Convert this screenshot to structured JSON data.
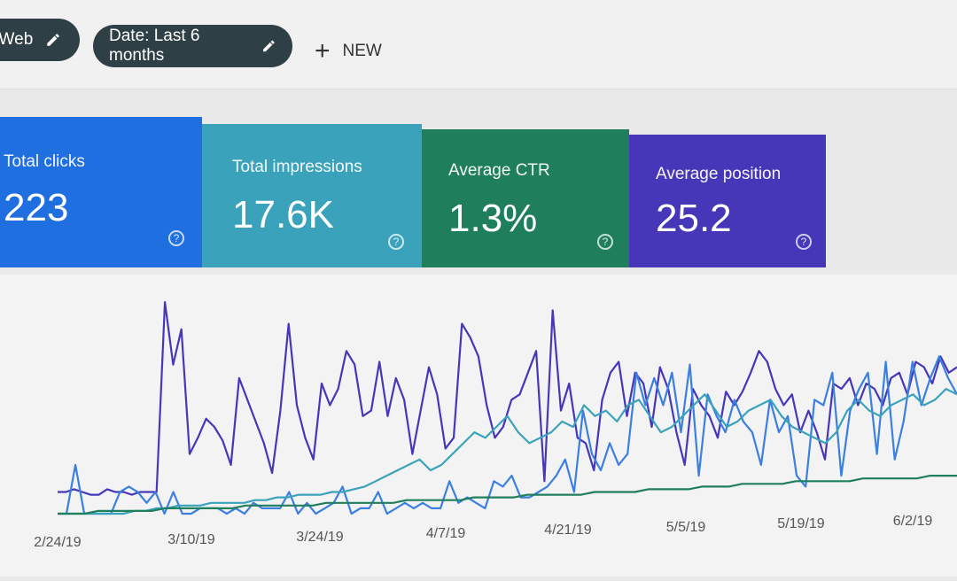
{
  "filters": {
    "type_chip": {
      "label": ": Web",
      "icon": "pencil-icon"
    },
    "date_chip": {
      "label": "Date: Last 6 months",
      "icon": "pencil-icon"
    },
    "new_button": {
      "label": "NEW",
      "icon": "plus-icon"
    }
  },
  "metrics": [
    {
      "label": "Total clicks",
      "value": "223",
      "color": "#1f6fe0"
    },
    {
      "label": "Total impressions",
      "value": "17.6K",
      "color": "#3aa3bb"
    },
    {
      "label": "Average CTR",
      "value": "1.3%",
      "color": "#1f7e5c"
    },
    {
      "label": "Average position",
      "value": "25.2",
      "color": "#4537b8"
    }
  ],
  "chart_data": {
    "type": "line",
    "x_tick_labels": [
      "2/24/19",
      "3/10/19",
      "3/24/19",
      "4/7/19",
      "4/21/19",
      "5/5/19",
      "5/19/19",
      "6/2/19"
    ],
    "grid": false,
    "legend": "none",
    "series": [
      {
        "color": "#4537b8",
        "values": [
          8,
          8,
          9,
          8,
          7,
          7,
          9,
          8,
          8,
          7,
          8,
          8,
          8,
          78,
          55,
          68,
          22,
          28,
          35,
          32,
          27,
          18,
          50,
          42,
          34,
          26,
          15,
          38,
          70,
          40,
          28,
          20,
          48,
          40,
          46,
          60,
          55,
          36,
          38,
          56,
          36,
          50,
          42,
          22,
          38,
          54,
          44,
          24,
          28,
          70,
          65,
          58,
          40,
          28,
          32,
          42,
          44,
          52,
          60,
          12,
          75,
          38,
          48,
          28,
          26,
          16,
          42,
          52,
          56,
          36,
          52,
          48,
          32,
          54,
          46,
          30,
          18,
          46,
          40,
          36,
          28,
          45,
          40,
          45,
          52,
          60,
          56,
          46,
          40,
          44,
          30,
          38,
          30,
          20,
          48,
          46,
          50,
          40,
          48,
          46,
          40,
          50,
          52,
          44,
          56,
          54,
          48,
          58,
          52,
          54
        ]
      },
      {
        "color": "#3b7fe0",
        "values": [
          0,
          0,
          18,
          0,
          0,
          0,
          0,
          8,
          10,
          8,
          4,
          8,
          0,
          8,
          0,
          0,
          2,
          2,
          2,
          0,
          2,
          0,
          4,
          2,
          2,
          2,
          8,
          0,
          4,
          0,
          2,
          4,
          10,
          0,
          2,
          2,
          8,
          0,
          2,
          4,
          2,
          4,
          2,
          2,
          12,
          4,
          6,
          4,
          2,
          12,
          10,
          14,
          6,
          6,
          8,
          10,
          14,
          20,
          8,
          38,
          22,
          16,
          26,
          18,
          22,
          52,
          40,
          50,
          40,
          52,
          30,
          55,
          14,
          44,
          36,
          30,
          42,
          34,
          30,
          18,
          42,
          30,
          36,
          14,
          10,
          42,
          40,
          52,
          14,
          38,
          46,
          52,
          22,
          56,
          20,
          34,
          56,
          40,
          50,
          58,
          50,
          44
        ]
      },
      {
        "color": "#3aa3bb",
        "values": [
          0,
          0,
          0,
          0,
          0,
          0,
          0,
          1,
          1,
          2,
          2,
          3,
          3,
          3,
          4,
          4,
          4,
          4,
          5,
          5,
          6,
          6,
          7,
          7,
          7,
          8,
          8,
          9,
          10,
          12,
          14,
          16,
          18,
          20,
          16,
          18,
          22,
          26,
          30,
          28,
          32,
          36,
          30,
          26,
          28,
          30,
          34,
          32,
          40,
          36,
          38,
          34,
          40,
          42,
          36,
          30,
          32,
          36,
          40,
          44,
          38,
          32,
          34,
          38,
          40,
          42,
          36,
          32,
          30,
          28,
          26,
          30,
          38,
          42,
          38,
          36,
          40,
          42,
          44,
          40,
          42,
          46,
          44
        ]
      },
      {
        "color": "#1f7e5c",
        "values": [
          0,
          0,
          0,
          1,
          1,
          1,
          1,
          1,
          2,
          2,
          2,
          2,
          2,
          2,
          3,
          3,
          3,
          3,
          3,
          3,
          4,
          4,
          4,
          4,
          4,
          4,
          5,
          5,
          5,
          5,
          5,
          6,
          6,
          6,
          6,
          7,
          7,
          7,
          7,
          7,
          8,
          8,
          8,
          8,
          9,
          9,
          9,
          9,
          10,
          10,
          10,
          11,
          11,
          11,
          11,
          12,
          12,
          12,
          12,
          12,
          13,
          13,
          13,
          13,
          13,
          14,
          14,
          14
        ]
      }
    ]
  }
}
